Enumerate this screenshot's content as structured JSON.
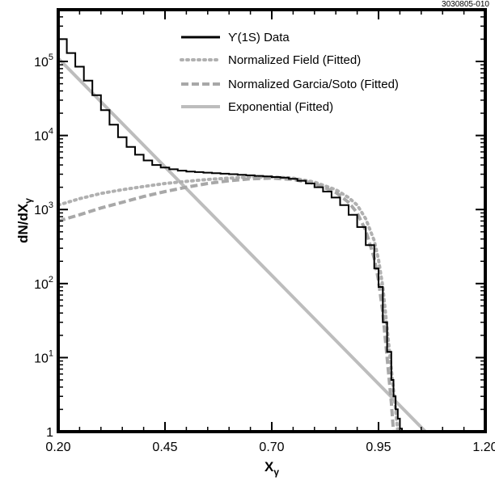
{
  "chart_data": {
    "type": "line",
    "id_label": "3030805-010",
    "xlabel": "X",
    "xlabel_sub": "γ",
    "ylabel": "dN/dX",
    "ylabel_sub": "γ",
    "xlim": [
      0.2,
      1.2
    ],
    "ylim": [
      1,
      500000
    ],
    "yscale": "log",
    "grid": false,
    "legend_position": "top-center",
    "x_ticks": [
      0.2,
      0.45,
      0.7,
      0.95,
      1.2
    ],
    "x_tick_labels": [
      "0.20",
      "0.45",
      "0.70",
      "0.95",
      "1.20"
    ],
    "y_ticks": [
      1,
      10,
      100,
      1000,
      10000,
      100000
    ],
    "y_tick_labels": [
      {
        "base": "1",
        "exp": ""
      },
      {
        "base": "10",
        "exp": "1"
      },
      {
        "base": "10",
        "exp": "2"
      },
      {
        "base": "10",
        "exp": "3"
      },
      {
        "base": "10",
        "exp": "4"
      },
      {
        "base": "10",
        "exp": "5"
      }
    ],
    "series": [
      {
        "name": "ϒ(1S) Data",
        "style": "step",
        "color": "#000000",
        "x": [
          0.2,
          0.22,
          0.24,
          0.26,
          0.28,
          0.3,
          0.32,
          0.34,
          0.36,
          0.38,
          0.4,
          0.42,
          0.44,
          0.46,
          0.48,
          0.5,
          0.52,
          0.54,
          0.56,
          0.58,
          0.6,
          0.62,
          0.64,
          0.66,
          0.68,
          0.7,
          0.72,
          0.74,
          0.76,
          0.78,
          0.8,
          0.82,
          0.84,
          0.86,
          0.88,
          0.9,
          0.92,
          0.94,
          0.95,
          0.96,
          0.97,
          0.98,
          0.985,
          0.99,
          0.995,
          1.0,
          1.005
        ],
        "y": [
          200000,
          130000,
          85000,
          55000,
          35000,
          22000,
          14000,
          9500,
          7000,
          5500,
          4600,
          4000,
          3700,
          3500,
          3350,
          3250,
          3200,
          3150,
          3100,
          3050,
          3000,
          2950,
          2900,
          2850,
          2800,
          2750,
          2700,
          2600,
          2450,
          2250,
          2000,
          1750,
          1450,
          1150,
          850,
          580,
          330,
          160,
          90,
          30,
          12,
          5,
          3,
          2,
          1.5,
          1.1,
          1
        ]
      },
      {
        "name": "Normalized Field (Fitted)",
        "style": "dotted",
        "color": "#b0b0b0",
        "x": [
          0.2,
          0.25,
          0.3,
          0.35,
          0.4,
          0.45,
          0.5,
          0.55,
          0.6,
          0.65,
          0.7,
          0.75,
          0.8,
          0.85,
          0.88,
          0.9,
          0.92,
          0.94,
          0.95,
          0.96,
          0.97,
          0.98,
          0.99,
          0.995
        ],
        "y": [
          1150,
          1400,
          1650,
          1850,
          2050,
          2250,
          2400,
          2550,
          2650,
          2750,
          2750,
          2650,
          2350,
          1850,
          1450,
          1150,
          750,
          380,
          210,
          90,
          25,
          7,
          2,
          1
        ]
      },
      {
        "name": "Normalized Garcia/Soto (Fitted)",
        "style": "dashed",
        "color": "#a8a8a8",
        "x": [
          0.2,
          0.25,
          0.3,
          0.35,
          0.4,
          0.45,
          0.5,
          0.55,
          0.6,
          0.65,
          0.7,
          0.75,
          0.8,
          0.85,
          0.88,
          0.9,
          0.92,
          0.94,
          0.95,
          0.96,
          0.97,
          0.98,
          0.985
        ],
        "y": [
          700,
          850,
          1050,
          1250,
          1500,
          1750,
          2000,
          2250,
          2450,
          2600,
          2650,
          2550,
          2250,
          1700,
          1250,
          900,
          520,
          220,
          110,
          40,
          10,
          2.5,
          1
        ]
      },
      {
        "name": "Exponential (Fitted)",
        "style": "solid",
        "color": "#bdbdbd",
        "x": [
          0.2,
          1.06
        ],
        "y": [
          110000,
          1
        ]
      }
    ]
  }
}
